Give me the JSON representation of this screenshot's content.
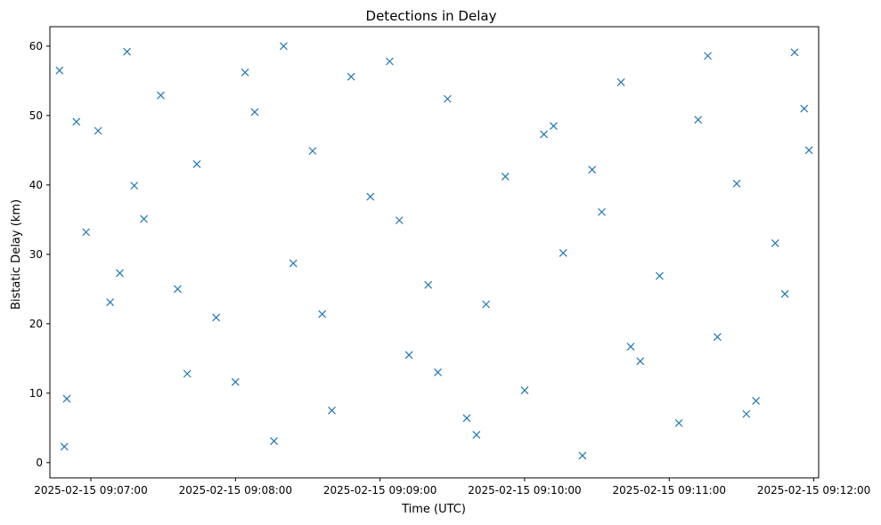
{
  "chart_data": {
    "type": "scatter",
    "title": "Detections in Delay",
    "xlabel": "Time (UTC)",
    "ylabel": "Bistatic Delay (km)",
    "marker": "x",
    "grid": false,
    "legend": "none",
    "color": "#1f77b4",
    "x_ticks": [
      "2025-02-15 09:07:00",
      "2025-02-15 09:08:00",
      "2025-02-15 09:09:00",
      "2025-02-15 09:10:00",
      "2025-02-15 09:11:00",
      "2025-02-15 09:12:00"
    ],
    "y_ticks": [
      "0",
      "10",
      "20",
      "30",
      "40",
      "50",
      "60"
    ],
    "xlim": [
      "2025-02-15 09:06:43",
      "2025-02-15 09:12:02"
    ],
    "ylim": [
      -2.2,
      62.8
    ],
    "series": [
      {
        "x": [
          "2025-02-15 09:06:47",
          "2025-02-15 09:06:50",
          "2025-02-15 09:06:54",
          "2025-02-15 09:06:58",
          "2025-02-15 09:07:03",
          "2025-02-15 09:07:08",
          "2025-02-15 09:07:15",
          "2025-02-15 09:07:22",
          "2025-02-15 09:07:29",
          "2025-02-15 09:07:36",
          "2025-02-15 09:07:44",
          "2025-02-15 09:07:52",
          "2025-02-15 09:08:00",
          "2025-02-15 09:08:08",
          "2025-02-15 09:08:16",
          "2025-02-15 09:08:24",
          "2025-02-15 09:08:32",
          "2025-02-15 09:08:40",
          "2025-02-15 09:08:48",
          "2025-02-15 09:08:56",
          "2025-02-15 09:09:04",
          "2025-02-15 09:09:12",
          "2025-02-15 09:09:20",
          "2025-02-15 09:09:28",
          "2025-02-15 09:09:36",
          "2025-02-15 09:09:44",
          "2025-02-15 09:09:52",
          "2025-02-15 09:10:00",
          "2025-02-15 09:10:08",
          "2025-02-15 09:10:16",
          "2025-02-15 09:10:24",
          "2025-02-15 09:10:32",
          "2025-02-15 09:10:40",
          "2025-02-15 09:10:48",
          "2025-02-15 09:10:56",
          "2025-02-15 09:11:04",
          "2025-02-15 09:11:12",
          "2025-02-15 09:11:20",
          "2025-02-15 09:11:28",
          "2025-02-15 09:11:36",
          "2025-02-15 09:11:44",
          "2025-02-15 09:11:52",
          "2025-02-15 09:11:58",
          "2025-02-15 09:06:49",
          "2025-02-15 09:07:12",
          "2025-02-15 09:07:40",
          "2025-02-15 09:08:04",
          "2025-02-15 09:08:36",
          "2025-02-15 09:09:08",
          "2025-02-15 09:09:40",
          "2025-02-15 09:10:12",
          "2025-02-15 09:10:44",
          "2025-02-15 09:11:16",
          "2025-02-15 09:11:48",
          "2025-02-15 09:07:18",
          "2025-02-15 09:08:20",
          "2025-02-15 09:09:24",
          "2025-02-15 09:10:28",
          "2025-02-15 09:11:32",
          "2025-02-15 09:11:56"
        ],
        "y": [
          56.5,
          9.2,
          49.1,
          33.2,
          47.8,
          23.1,
          59.2,
          35.1,
          52.9,
          25.0,
          43.0,
          20.9,
          11.6,
          50.5,
          3.1,
          28.7,
          44.9,
          7.5,
          55.6,
          38.3,
          57.8,
          15.5,
          25.6,
          52.4,
          6.4,
          22.8,
          41.2,
          10.4,
          47.3,
          30.2,
          1.0,
          36.1,
          54.8,
          14.6,
          26.9,
          5.7,
          49.4,
          18.1,
          40.2,
          8.9,
          31.6,
          59.1,
          45.0,
          2.3,
          27.3,
          12.8,
          56.2,
          21.4,
          34.9,
          4.0,
          48.5,
          16.7,
          58.6,
          24.3,
          39.9,
          60.0,
          13.0,
          42.2,
          7.0,
          51.0
        ]
      }
    ]
  }
}
